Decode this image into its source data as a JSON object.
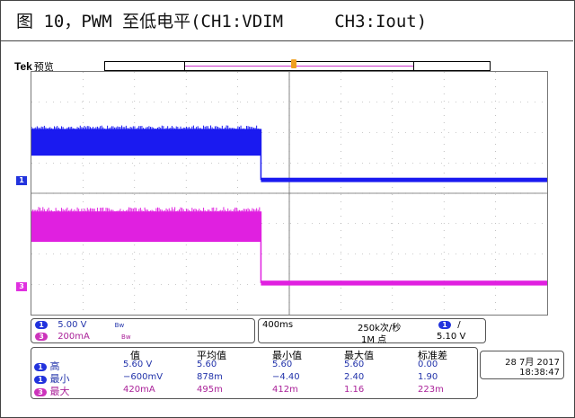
{
  "caption": "图 10，PWM 至低电平(CH1:VDIM     CH3:Iout)",
  "scope": {
    "brand": "Tek",
    "mode": "预览",
    "channels": [
      {
        "num": "1",
        "scale": "5.00 V",
        "coupling": "Bw",
        "color": "#1a1af0"
      },
      {
        "num": "3",
        "scale": "200mA",
        "coupling": "Bw",
        "color": "#e020e0"
      }
    ],
    "timebase": "400ms",
    "sample_rate": "250k次/秒",
    "record_length": "1M 点",
    "trigger": {
      "channel": "1",
      "slope": "/",
      "level": "5.10 V"
    },
    "measurements": {
      "headers": [
        "值",
        "平均值",
        "最小值",
        "最大值",
        "标准差"
      ],
      "rows": [
        {
          "ch": "1",
          "name": "高",
          "values": [
            "5.60 V",
            "5.60",
            "5.60",
            "5.60",
            "0.00"
          ]
        },
        {
          "ch": "1",
          "name": "最小",
          "values": [
            "−600mV",
            "878m",
            "−4.40",
            "2.40",
            "1.90"
          ]
        },
        {
          "ch": "3",
          "name": "最大",
          "values": [
            "420mA",
            "495m",
            "412m",
            "1.16",
            "223m"
          ]
        }
      ]
    },
    "date": "28 7月 2017",
    "time": "18:38:47",
    "icons": {
      "ch1_marker": "ch1-ground-marker-icon",
      "ch3_marker": "ch3-ground-marker-icon",
      "trigger": "trigger-position-icon"
    }
  }
}
